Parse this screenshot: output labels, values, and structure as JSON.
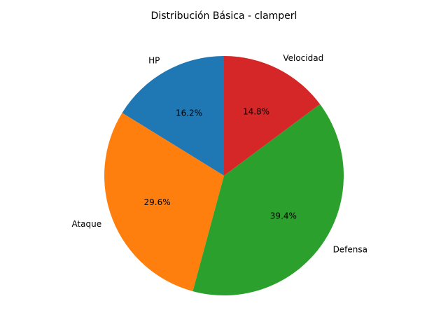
{
  "chart_data": {
    "type": "pie",
    "title": "Distribución Básica - clamperl",
    "categories": [
      "HP",
      "Ataque",
      "Defensa",
      "Velocidad"
    ],
    "values": [
      16.2,
      29.6,
      39.4,
      14.8
    ],
    "value_labels": [
      "16.2%",
      "29.6%",
      "39.4%",
      "14.8%"
    ],
    "colors": [
      "#1f77b4",
      "#ff7f0e",
      "#2ca02c",
      "#d62728"
    ],
    "start_angle_deg": 90,
    "direction": "counterclockwise",
    "legend": "none"
  }
}
